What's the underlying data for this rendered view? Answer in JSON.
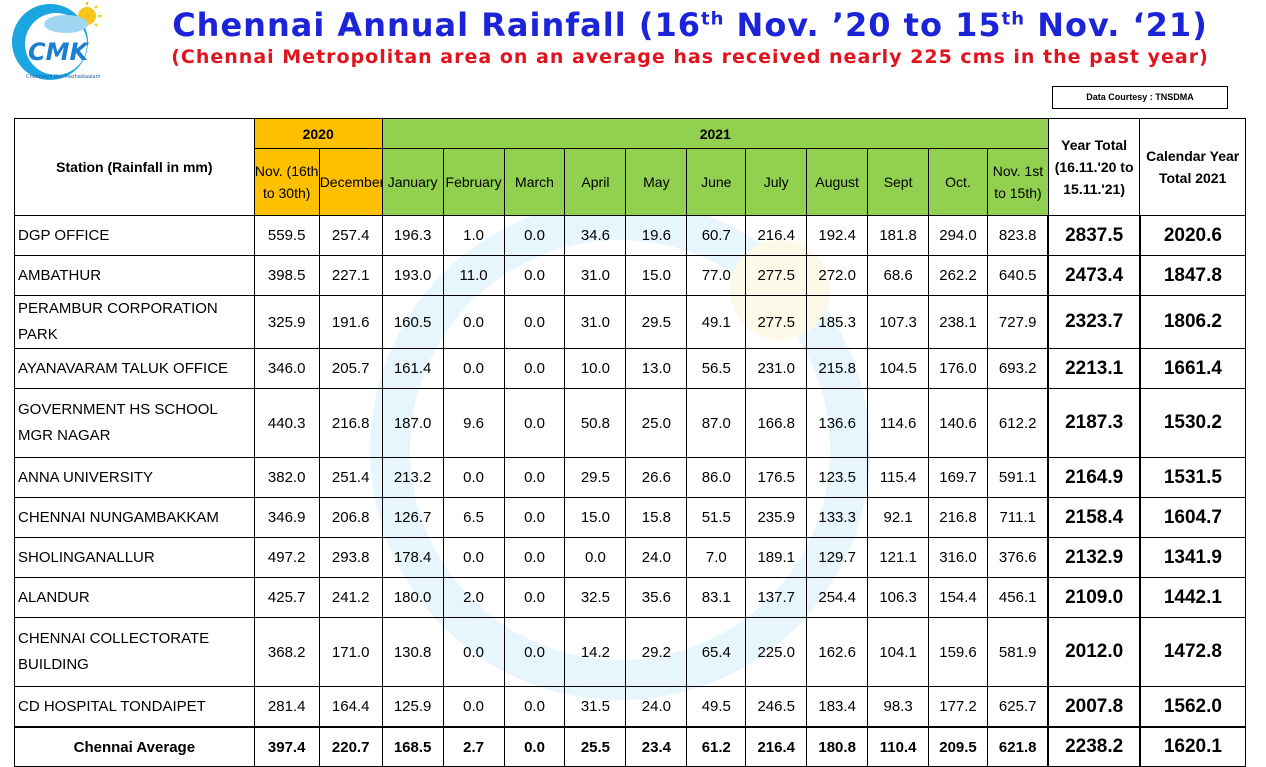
{
  "logo": {
    "text": "CMK",
    "caption": "Chennaiyil Oru Mazhaikaalam"
  },
  "title": {
    "text_main": "Chennai Annual Rainfall (16",
    "sup1": "th",
    "text_mid": " Nov. ’20 to 15",
    "sup2": "th",
    "text_end": " Nov. ‘21)"
  },
  "subtitle": "(Chennai Metropolitan area on an average has received nearly 225 cms in the past year)",
  "courtesy": "Data Courtesy : TNSDMA",
  "colors": {
    "title": "#1c24d8",
    "subtitle": "#e0141e",
    "y2020": "#ffc000",
    "y2021": "#92d050"
  },
  "chart_data": {
    "type": "table",
    "title": "Chennai Annual Rainfall (16th Nov. ’20 to 15th Nov. ‘21)",
    "header": {
      "station": "Station (Rainfall in mm)",
      "year2020": "2020",
      "year2021": "2021",
      "year_total": "Year Total (16.11.'20 to 15.11.'21)",
      "calendar_total": "Calendar Year Total 2021",
      "months": [
        "Nov. (16th to 30th)",
        "December",
        "January",
        "February",
        "March",
        "April",
        "May",
        "June",
        "July",
        "August",
        "Sept",
        "Oct.",
        "Nov. 1st to 15th)"
      ]
    },
    "rows": [
      {
        "station": "DGP OFFICE",
        "values": [
          "559.5",
          "257.4",
          "196.3",
          "1.0",
          "0.0",
          "34.6",
          "19.6",
          "60.7",
          "216.4",
          "192.4",
          "181.8",
          "294.0",
          "823.8"
        ],
        "year_total": "2837.5",
        "calendar_total": "2020.6"
      },
      {
        "station": "AMBATHUR",
        "values": [
          "398.5",
          "227.1",
          "193.0",
          "11.0",
          "0.0",
          "31.0",
          "15.0",
          "77.0",
          "277.5",
          "272.0",
          "68.6",
          "262.2",
          "640.5"
        ],
        "year_total": "2473.4",
        "calendar_total": "1847.8"
      },
      {
        "station": "PERAMBUR CORPORATION PARK",
        "values": [
          "325.9",
          "191.6",
          "160.5",
          "0.0",
          "0.0",
          "31.0",
          "29.5",
          "49.1",
          "277.5",
          "185.3",
          "107.3",
          "238.1",
          "727.9"
        ],
        "year_total": "2323.7",
        "calendar_total": "1806.2"
      },
      {
        "station": "AYANAVARAM TALUK OFFICE",
        "values": [
          "346.0",
          "205.7",
          "161.4",
          "0.0",
          "0.0",
          "10.0",
          "13.0",
          "56.5",
          "231.0",
          "215.8",
          "104.5",
          "176.0",
          "693.2"
        ],
        "year_total": "2213.1",
        "calendar_total": "1661.4"
      },
      {
        "station": "GOVERNMENT HS SCHOOL MGR NAGAR",
        "values": [
          "440.3",
          "216.8",
          "187.0",
          "9.6",
          "0.0",
          "50.8",
          "25.0",
          "87.0",
          "166.8",
          "136.6",
          "114.6",
          "140.6",
          "612.2"
        ],
        "year_total": "2187.3",
        "calendar_total": "1530.2"
      },
      {
        "station": "ANNA UNIVERSITY",
        "values": [
          "382.0",
          "251.4",
          "213.2",
          "0.0",
          "0.0",
          "29.5",
          "26.6",
          "86.0",
          "176.5",
          "123.5",
          "115.4",
          "169.7",
          "591.1"
        ],
        "year_total": "2164.9",
        "calendar_total": "1531.5"
      },
      {
        "station": "CHENNAI NUNGAMBAKKAM",
        "values": [
          "346.9",
          "206.8",
          "126.7",
          "6.5",
          "0.0",
          "15.0",
          "15.8",
          "51.5",
          "235.9",
          "133.3",
          "92.1",
          "216.8",
          "711.1"
        ],
        "year_total": "2158.4",
        "calendar_total": "1604.7"
      },
      {
        "station": "SHOLINGANALLUR",
        "values": [
          "497.2",
          "293.8",
          "178.4",
          "0.0",
          "0.0",
          "0.0",
          "24.0",
          "7.0",
          "189.1",
          "129.7",
          "121.1",
          "316.0",
          "376.6"
        ],
        "year_total": "2132.9",
        "calendar_total": "1341.9"
      },
      {
        "station": "ALANDUR",
        "values": [
          "425.7",
          "241.2",
          "180.0",
          "2.0",
          "0.0",
          "32.5",
          "35.6",
          "83.1",
          "137.7",
          "254.4",
          "106.3",
          "154.4",
          "456.1"
        ],
        "year_total": "2109.0",
        "calendar_total": "1442.1"
      },
      {
        "station": "CHENNAI COLLECTORATE BUILDING",
        "values": [
          "368.2",
          "171.0",
          "130.8",
          "0.0",
          "0.0",
          "14.2",
          "29.2",
          "65.4",
          "225.0",
          "162.6",
          "104.1",
          "159.6",
          "581.9"
        ],
        "year_total": "2012.0",
        "calendar_total": "1472.8"
      },
      {
        "station": "CD HOSPITAL TONDAIPET",
        "values": [
          "281.4",
          "164.4",
          "125.9",
          "0.0",
          "0.0",
          "31.5",
          "24.0",
          "49.5",
          "246.5",
          "183.4",
          "98.3",
          "177.2",
          "625.7"
        ],
        "year_total": "2007.8",
        "calendar_total": "1562.0"
      }
    ],
    "average": {
      "station": "Chennai Average",
      "values": [
        "397.4",
        "220.7",
        "168.5",
        "2.7",
        "0.0",
        "25.5",
        "23.4",
        "61.2",
        "216.4",
        "180.8",
        "110.4",
        "209.5",
        "621.8"
      ],
      "year_total": "2238.2",
      "calendar_total": "1620.1"
    }
  }
}
